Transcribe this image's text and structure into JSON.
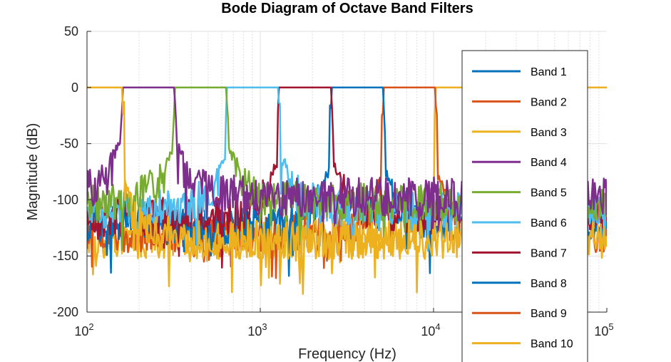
{
  "chart_data": {
    "type": "line",
    "title": "Bode Diagram of Octave Band Filters",
    "xlabel": "Frequency (Hz)",
    "ylabel": "Magnitude (dB)",
    "xscale": "log",
    "xlim": [
      100,
      100000
    ],
    "ylim": [
      -200,
      50
    ],
    "x_ticks": [
      {
        "base": "10",
        "exp": "2"
      },
      {
        "base": "10",
        "exp": "3"
      },
      {
        "base": "10",
        "exp": "4"
      },
      {
        "base": "10",
        "exp": "5"
      }
    ],
    "y_ticks": [
      "50",
      "0",
      "-50",
      "-100",
      "-150",
      "-200"
    ],
    "grid": true,
    "legend_position": "right",
    "series": [
      {
        "name": "Band 1",
        "color": "#0072BD",
        "passband_hz": [
          2570,
          5140
        ],
        "stopband_db": -105
      },
      {
        "name": "Band 2",
        "color": "#D95319",
        "passband_hz": [
          5140,
          10280
        ],
        "stopband_db": -112
      },
      {
        "name": "Band 3",
        "color": "#EDB120",
        "passband_hz": [
          10,
          160
        ],
        "stopband_db": -118
      },
      {
        "name": "Band 4",
        "color": "#7E2F8E",
        "passband_hz": [
          160,
          320
        ],
        "stopband_db": -80
      },
      {
        "name": "Band 5",
        "color": "#77AC30",
        "passband_hz": [
          320,
          640
        ],
        "stopband_db": -85
      },
      {
        "name": "Band 6",
        "color": "#4DBEEE",
        "passband_hz": [
          640,
          1280
        ],
        "stopband_db": -92
      },
      {
        "name": "Band 7",
        "color": "#A2142F",
        "passband_hz": [
          1280,
          2570
        ],
        "stopband_db": -98
      },
      {
        "name": "Band 8",
        "color": "#0072BD",
        "passband_hz": [
          2570,
          5140
        ],
        "stopband_db": -105
      },
      {
        "name": "Band 9",
        "color": "#D95319",
        "passband_hz": [
          5140,
          10280
        ],
        "stopband_db": -112
      },
      {
        "name": "Band 10",
        "color": "#EDB120",
        "passband_hz": [
          10280,
          100000
        ],
        "stopband_db": -118
      }
    ]
  }
}
